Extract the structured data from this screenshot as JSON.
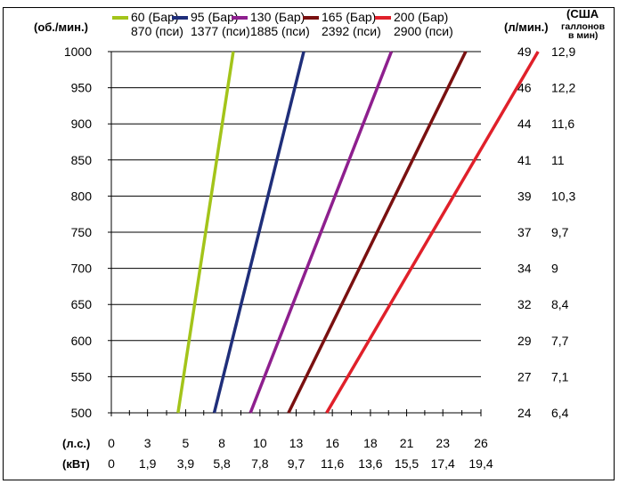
{
  "chart_data": {
    "type": "line",
    "y_left_label": "(об./мин.)",
    "y_right1_label": "(л/мин.)",
    "y_right2_label": [
      "(США",
      "галлонов",
      "в мин)"
    ],
    "yticks": [
      500,
      550,
      600,
      650,
      700,
      750,
      800,
      850,
      900,
      950,
      1000
    ],
    "ylim": [
      500,
      1000
    ],
    "right_lpm": [
      "24",
      "27",
      "29",
      "32",
      "34",
      "37",
      "39",
      "41",
      "44",
      "46",
      "49"
    ],
    "right_gpm": [
      "6,4",
      "7,1",
      "7,7",
      "8,4",
      "9",
      "9,7",
      "10,3",
      "11",
      "11,6",
      "12,2",
      "12,9"
    ],
    "x_hp_label": "(л.с.)",
    "x_kw_label": "(кВт)",
    "x_hp_ticks": [
      "0",
      "3",
      "5",
      "8",
      "10",
      "13",
      "16",
      "18",
      "21",
      "23",
      "26"
    ],
    "x_kw_ticks": [
      "0",
      "1,9",
      "3,9",
      "5,8",
      "7,8",
      "9,7",
      "11,6",
      "13,6",
      "15,5",
      "17,4",
      "19,4"
    ],
    "xlim_kw": [
      0,
      19.4
    ],
    "series": [
      {
        "name": "60 (Бар)",
        "name2": "870 (пси)",
        "color": "#a3c41a",
        "x_kw": [
          3.5,
          6.4
        ],
        "rpm": [
          500,
          1000
        ]
      },
      {
        "name": "95 (Бар)",
        "name2": "1377 (пси)",
        "color": "#1f2e7a",
        "x_kw": [
          5.4,
          10.1
        ],
        "rpm": [
          500,
          1000
        ]
      },
      {
        "name": "130 (Бар)",
        "name2": "1885 (пси)",
        "color": "#8e1f8e",
        "x_kw": [
          7.3,
          14.7
        ],
        "rpm": [
          500,
          1000
        ]
      },
      {
        "name": "165 (Бар)",
        "name2": "2392 (пси)",
        "color": "#7a1010",
        "x_kw": [
          9.3,
          18.6
        ],
        "rpm": [
          500,
          1000
        ]
      },
      {
        "name": "200 (Бар)",
        "name2": "2900 (пси)",
        "color": "#e0202a",
        "x_kw": [
          11.3,
          22.4
        ],
        "rpm": [
          500,
          1000
        ]
      }
    ],
    "grid": true,
    "legend_position": "top"
  }
}
